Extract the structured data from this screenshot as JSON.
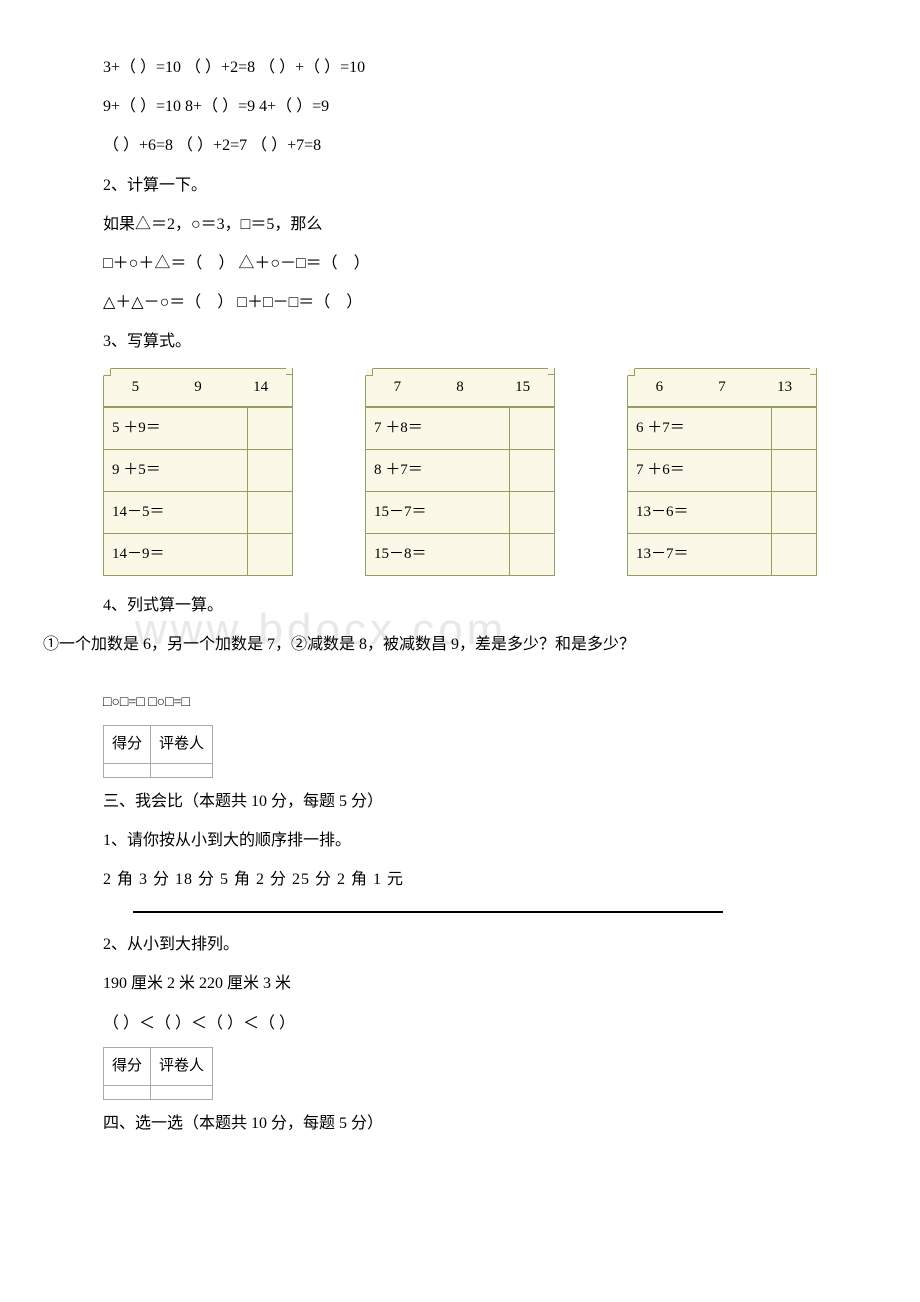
{
  "section1": {
    "eq1": "3+（ ）=10 （ ）+2=8 （ ）+（ ）=10",
    "eq2": "9+（ ）=10 8+（ ）=9 4+（ ）=9",
    "eq3": "（ ）+6=8 （ ）+2=7 （ ）+7=8"
  },
  "section2": {
    "title": "2、计算一下。",
    "cond": "如果△＝2，○＝3，□＝5，那么",
    "line1": "□＋○＋△＝（　）  △＋○－□＝（　）",
    "line2": "△＋△－○＝（　）  □＋□－□＝（　）"
  },
  "section3": {
    "title": "3、写算式。",
    "tables": [
      {
        "header": [
          "5",
          "9",
          "14"
        ],
        "rows": [
          "5 ＋9＝",
          "9 ＋5＝",
          "14－5＝",
          "14－9＝"
        ]
      },
      {
        "header": [
          "7",
          "8",
          "15"
        ],
        "rows": [
          "7 ＋8＝",
          "8 ＋7＝",
          "15－7＝",
          "15－8＝"
        ]
      },
      {
        "header": [
          "6",
          "7",
          "13"
        ],
        "rows": [
          "6 ＋7＝",
          "7 ＋6＝",
          "13－6＝",
          "13－7＝"
        ]
      }
    ],
    "table_colors": {
      "bg": "#fcf8e8",
      "border": "#8fa060"
    }
  },
  "section4": {
    "title": "4、列式算一算。",
    "q": "①一个加数是 6，另一个加数是 7，②减数是 8，被减数昌 9，差是多少？和是多少？",
    "forms": "□○□=□ □○□=□"
  },
  "scorebox": {
    "c1": "得分",
    "c2": "评卷人"
  },
  "part3": {
    "title": "三、我会比（本题共 10 分，每题 5 分）",
    "q1": "1、请你按从小到大的顺序排一排。",
    "q1data": "2 角 3 分 18 分 5 角 2 分 25 分  2 角 1 元",
    "q2": "2、从小到大排列。",
    "q2data": "190 厘米 2 米 220 厘米 3 米",
    "q2ans": "（ ）＜（ ）＜（ ）＜（ ）"
  },
  "part4": {
    "title": "四、选一选（本题共 10 分，每题 5 分）"
  },
  "watermark": "www  bdocx  com"
}
